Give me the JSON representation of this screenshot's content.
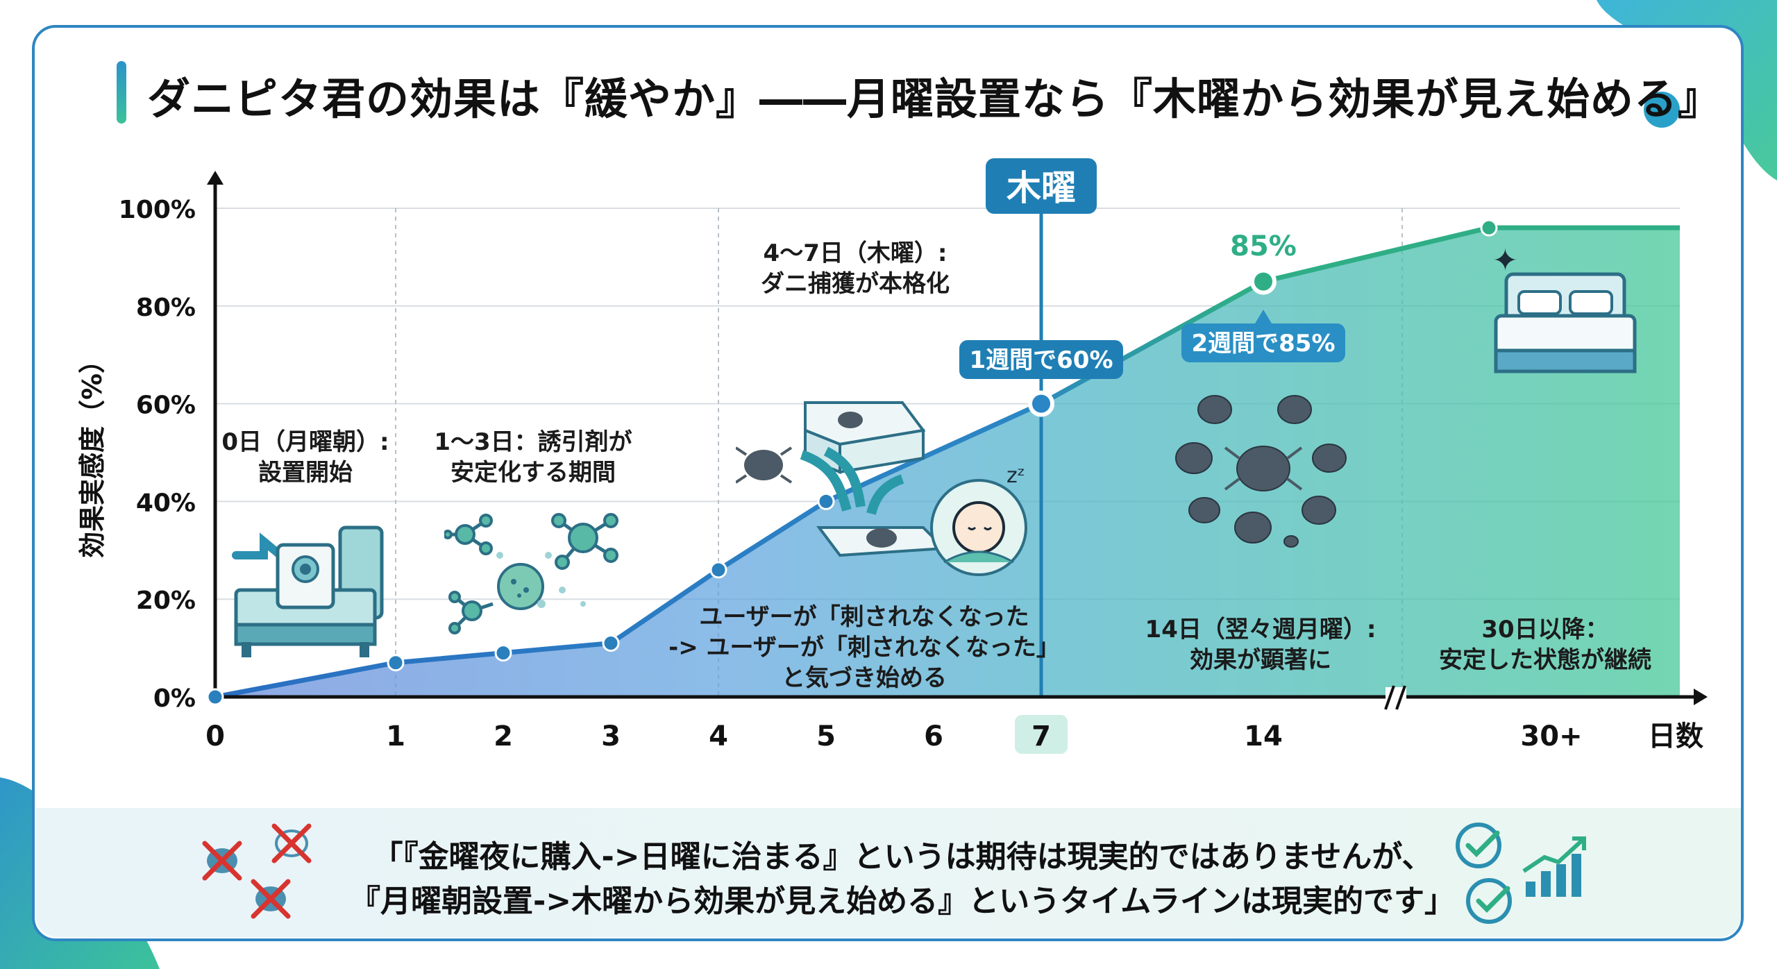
{
  "title": "ダニピタ君の効果は『緩やか』――月曜設置なら『木曜から効果が見え始める』",
  "chart_data": {
    "type": "area",
    "ylabel": "効果実感度（%）",
    "xlabel": "日数",
    "ylim": [
      0,
      100
    ],
    "y_ticks": [
      "0%",
      "20%",
      "40%",
      "60%",
      "80%",
      "100%"
    ],
    "x_ticks": [
      "0",
      "1",
      "2",
      "3",
      "4",
      "5",
      "6",
      "7",
      "14",
      "30+"
    ],
    "axis_break": "14〜30+",
    "grid": true,
    "series": [
      {
        "x": [
          "0",
          "1",
          "2",
          "3",
          "4",
          "5",
          "7",
          "14",
          "30+"
        ],
        "values": [
          0,
          7,
          9,
          11,
          26,
          40,
          60,
          85,
          96
        ]
      }
    ],
    "highlight": {
      "x": "7",
      "label": "木曜"
    },
    "callouts": [
      {
        "x": "7",
        "text": "1週間で60%"
      },
      {
        "x": "14",
        "text": "2週間で85%"
      },
      {
        "x": "14",
        "text": "85%"
      }
    ],
    "annotations": [
      {
        "line1": "0日（月曜朝）:",
        "line2": "設置開始"
      },
      {
        "line1": "1〜3日：誘引剤が",
        "line2": "安定化する期間"
      },
      {
        "line1": "4〜7日（木曜）:",
        "line2": "ダニ捕獲が本格化"
      },
      {
        "line1": "ユーザーが「刺されなくなった",
        "line2": "-> ユーザーが「刺されなくなった」",
        "line3": "と気づき始める"
      },
      {
        "line1": "14日（翌々週月曜）:",
        "line2": "効果が顕著に"
      },
      {
        "line1": "30日以降：",
        "line2": "安定した状態が継続"
      }
    ],
    "colors": {
      "line": "#2a7fbd",
      "accent_teal": "#2fae86",
      "highlight_box": "#1f7fb5",
      "callout_85": "#2a8fc4"
    }
  },
  "footer": {
    "quote_line1": "「『金曜夜に購入->日曜に治まる』というは期待は現実的ではありませんが、",
    "quote_line2": "『月曜朝設置->木曜から効果が見え始める』というタイムラインは現実的です」"
  },
  "icons": {
    "bed_device": "bed-with-device-icon",
    "molecules": "attractant-molecules-icon",
    "trap": "mite-trap-icon",
    "sleeper": "sleeping-person-icon",
    "mites": "mite-cluster-icon",
    "bed_clean": "clean-bed-icon",
    "crossed_mites": "crossed-out-mite-icon",
    "checks": "check-circle-icon",
    "growth": "growth-chart-icon"
  }
}
